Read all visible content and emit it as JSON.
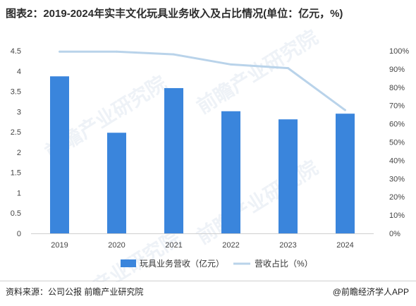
{
  "header": {
    "title": "图表2：2019-2024年实丰文化玩具业务收入及占比情况(单位：亿元，%)"
  },
  "chart_data": {
    "type": "bar",
    "categories": [
      "2019",
      "2020",
      "2021",
      "2022",
      "2023",
      "2024"
    ],
    "series": [
      {
        "name": "玩具业务营收（亿元）",
        "type": "bar",
        "axis": "left",
        "values": [
          3.87,
          2.48,
          3.58,
          3.01,
          2.81,
          2.95
        ],
        "color": "#3a85dc"
      },
      {
        "name": "营收占比（%）",
        "type": "line",
        "axis": "right",
        "values": [
          99.5,
          99.5,
          98.0,
          92.5,
          90.5,
          67.5
        ],
        "color": "#b9d3ea"
      }
    ],
    "y_left": {
      "min": 0,
      "max": 4.5,
      "ticks": [
        "0",
        "0.5",
        "1",
        "1.5",
        "2",
        "2.5",
        "3",
        "3.5",
        "4",
        "4.5"
      ]
    },
    "y_right": {
      "min": 0,
      "max": 100,
      "ticks": [
        "0%",
        "10%",
        "20%",
        "30%",
        "40%",
        "50%",
        "60%",
        "70%",
        "80%",
        "90%",
        "100%"
      ]
    },
    "legend_position": "bottom",
    "grid": false
  },
  "footer": {
    "source": "资料来源：公司公报 前瞻产业研究院",
    "brand": "@前瞻经济学人APP"
  },
  "watermark": {
    "text": "前瞻产业研究院"
  }
}
